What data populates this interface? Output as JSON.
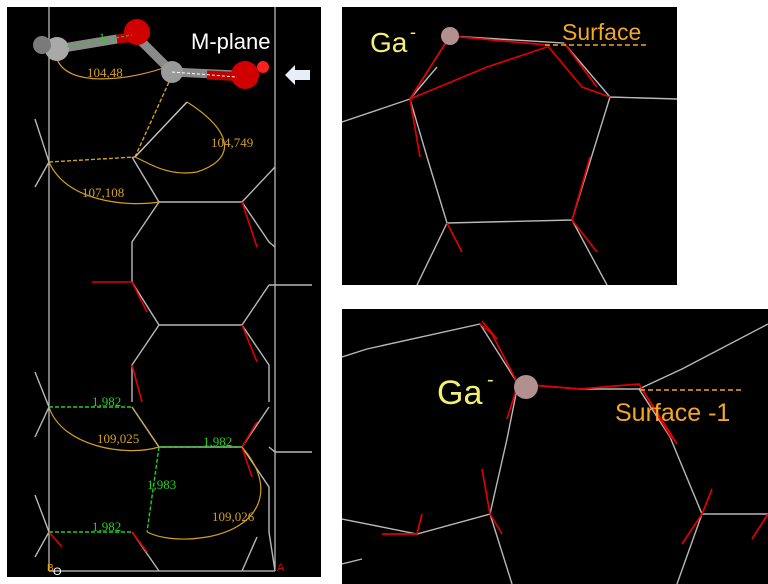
{
  "colors": {
    "background": "#000000",
    "bond_gray": "#c8c8c8",
    "bond_red": "#e00000",
    "angle_label": "#d4a020",
    "distance_label": "#1fd11f",
    "ga_label": "#f4f070",
    "surface_label": "#f5a623",
    "ga_atom": "#b29090",
    "white_label": "#ffffff"
  },
  "left_panel": {
    "title": "M-plane",
    "arrow_icon": "left-arrow-icon",
    "angles": [
      "104,48",
      "104,749",
      "107,108",
      "109,025",
      "109,026"
    ],
    "distances": [
      "1,982",
      "1,982",
      "1,983",
      "1,982"
    ],
    "axis_a": "A",
    "axis_b": "B",
    "axis_o": "O",
    "green_top_label": "1,"
  },
  "top_right_panel": {
    "ga_label": "Ga",
    "ga_charge": "-",
    "surface_label": "Surface"
  },
  "bottom_right_panel": {
    "ga_label": "Ga",
    "ga_charge": "-",
    "surface_label": "Surface -1"
  }
}
